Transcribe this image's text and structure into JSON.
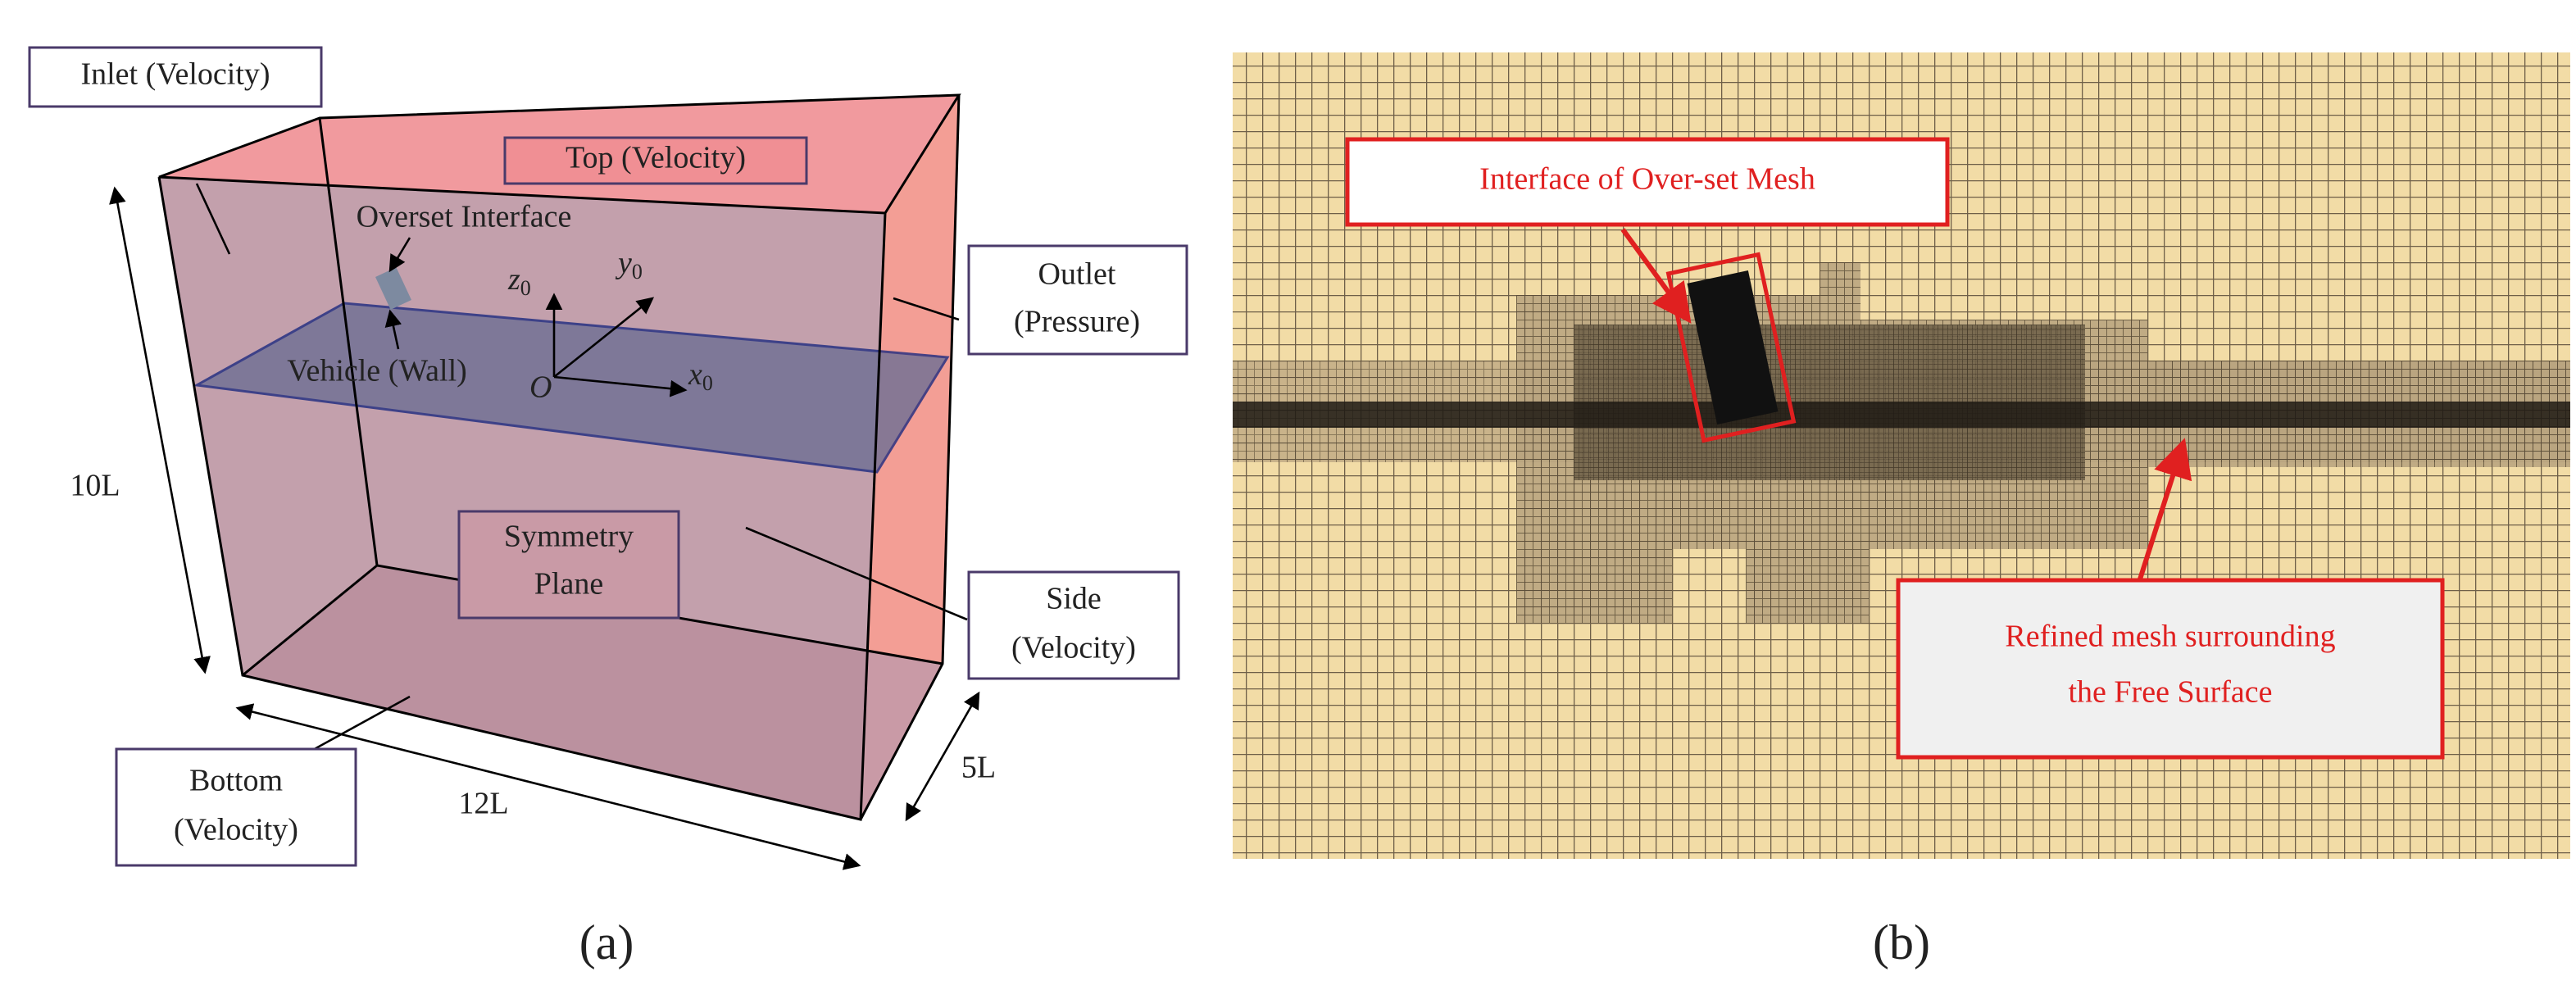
{
  "panel_a": {
    "inlet": "Inlet (Velocity)",
    "top": "Top (Velocity)",
    "outlet": [
      "Outlet",
      "(Pressure)"
    ],
    "side": [
      "Side",
      "(Velocity)"
    ],
    "bottom": [
      "Bottom",
      "(Velocity)"
    ],
    "symmetry": [
      "Symmetry",
      "Plane"
    ],
    "overset": "Overset Interface",
    "vehicle": "Vehicle (Wall)",
    "axes": {
      "z": {
        "letter": "z",
        "sub": "0"
      },
      "y": {
        "letter": "y",
        "sub": "0"
      },
      "x": {
        "letter": "x",
        "sub": "0"
      },
      "origin": "O"
    },
    "dims": {
      "height": "10L",
      "length": "12L",
      "width": "5L"
    },
    "caption": "(a)"
  },
  "panel_b": {
    "interface": "Interface of Over-set Mesh",
    "refined": [
      "Refined mesh surrounding",
      "the Free Surface"
    ],
    "caption": "(b)"
  }
}
